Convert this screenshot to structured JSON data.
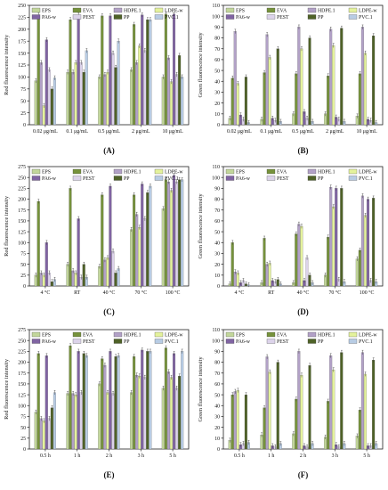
{
  "series_names": [
    "EPS",
    "EVA",
    "HDPE.1",
    "LDPE-w",
    "PA6-w",
    "PEST",
    "PP",
    "PVC.1"
  ],
  "series_colors": [
    "#c2d69b",
    "#76923c",
    "#b2a1c7",
    "#e4f29c",
    "#8064a2",
    "#dcd3ea",
    "#4f6228",
    "#b8cce4"
  ],
  "chart_data": [
    {
      "type": "bar",
      "panel_label": "(A)",
      "ylabel": "Red fluorescence intensity",
      "ylim": [
        0,
        250
      ],
      "yticks": [
        0,
        25,
        50,
        75,
        100,
        125,
        150,
        175,
        200,
        225,
        250
      ],
      "categories": [
        "0.02 μg/mL",
        "0.1 μg/mL",
        "0.5 μg/mL",
        "2 μg/mL",
        "10 μg/mL"
      ],
      "series": [
        {
          "name": "EPS",
          "values": [
            92,
            110,
            100,
            115,
            100
          ]
        },
        {
          "name": "EVA",
          "values": [
            230,
            220,
            228,
            210,
            232
          ]
        },
        {
          "name": "HDPE.1",
          "values": [
            130,
            110,
            105,
            130,
            140
          ]
        },
        {
          "name": "LDPE-w",
          "values": [
            40,
            130,
            110,
            165,
            90
          ]
        },
        {
          "name": "PA6-w",
          "values": [
            178,
            230,
            228,
            230,
            232
          ]
        },
        {
          "name": "PEST",
          "values": [
            115,
            130,
            150,
            155,
            105
          ]
        },
        {
          "name": "PP",
          "values": [
            75,
            110,
            120,
            220,
            145
          ]
        },
        {
          "name": "PVC.1",
          "values": [
            98,
            155,
            175,
            220,
            100
          ]
        }
      ]
    },
    {
      "type": "bar",
      "panel_label": "(B)",
      "ylabel": "Green fluorescence intensity",
      "ylim": [
        0,
        110
      ],
      "yticks": [
        0,
        10,
        20,
        30,
        40,
        50,
        60,
        70,
        80,
        90,
        100,
        110
      ],
      "categories": [
        "0.02 μg/mL",
        "0.1 μg/mL",
        "0.5 μg/mL",
        "2 μg/mL",
        "10 μg/mL"
      ],
      "series": [
        {
          "name": "EPS",
          "values": [
            6,
            5,
            10,
            10,
            8
          ]
        },
        {
          "name": "EVA",
          "values": [
            43,
            48,
            47,
            45,
            47
          ]
        },
        {
          "name": "HDPE.1",
          "values": [
            86,
            83,
            90,
            88,
            90
          ]
        },
        {
          "name": "LDPE-w",
          "values": [
            38,
            62,
            70,
            73,
            66
          ]
        },
        {
          "name": "PA6-w",
          "values": [
            9,
            6,
            12,
            7,
            5
          ]
        },
        {
          "name": "PEST",
          "values": [
            5,
            4,
            6,
            5,
            4
          ]
        },
        {
          "name": "PP",
          "values": [
            44,
            70,
            80,
            89,
            82
          ]
        },
        {
          "name": "PVC.1",
          "values": [
            2,
            3,
            3,
            3,
            2
          ]
        }
      ]
    },
    {
      "type": "bar",
      "panel_label": "(C)",
      "ylabel": "Red fluorescence intensity",
      "ylim": [
        0,
        275
      ],
      "yticks": [
        0,
        25,
        50,
        75,
        100,
        125,
        150,
        175,
        200,
        225,
        250,
        275
      ],
      "categories": [
        "4 °C",
        "RT",
        "40 °C",
        "70 °C",
        "100 °C"
      ],
      "series": [
        {
          "name": "EPS",
          "values": [
            25,
            50,
            45,
            130,
            178
          ]
        },
        {
          "name": "EVA",
          "values": [
            195,
            225,
            210,
            210,
            245
          ]
        },
        {
          "name": "HDPE.1",
          "values": [
            30,
            35,
            60,
            165,
            240
          ]
        },
        {
          "name": "LDPE-w",
          "values": [
            25,
            30,
            65,
            135,
            220
          ]
        },
        {
          "name": "PA6-w",
          "values": [
            100,
            155,
            230,
            235,
            255
          ]
        },
        {
          "name": "PEST",
          "values": [
            30,
            20,
            80,
            155,
            240
          ]
        },
        {
          "name": "PP",
          "values": [
            10,
            50,
            30,
            215,
            245
          ]
        },
        {
          "name": "PVC.1",
          "values": [
            15,
            20,
            40,
            230,
            245
          ]
        }
      ]
    },
    {
      "type": "bar",
      "panel_label": "(D)",
      "ylabel": "Green fluorescence intensity",
      "ylim": [
        0,
        110
      ],
      "yticks": [
        0,
        10,
        20,
        30,
        40,
        50,
        60,
        70,
        80,
        90,
        100,
        110
      ],
      "categories": [
        "4 °C",
        "RT",
        "40 °C",
        "70 °C",
        "100 °C"
      ],
      "series": [
        {
          "name": "EPS",
          "values": [
            2,
            3,
            3,
            10,
            25
          ]
        },
        {
          "name": "EVA",
          "values": [
            40,
            44,
            48,
            45,
            33
          ]
        },
        {
          "name": "HDPE.1",
          "values": [
            13,
            20,
            57,
            91,
            83
          ]
        },
        {
          "name": "LDPE-w",
          "values": [
            12,
            21,
            55,
            73,
            65
          ]
        },
        {
          "name": "PA6-w",
          "values": [
            3,
            5,
            5,
            90,
            80
          ]
        },
        {
          "name": "PEST",
          "values": [
            5,
            4,
            26,
            6,
            5
          ]
        },
        {
          "name": "PP",
          "values": [
            2,
            6,
            10,
            90,
            81
          ]
        },
        {
          "name": "PVC.1",
          "values": [
            1,
            2,
            3,
            4,
            4
          ]
        }
      ]
    },
    {
      "type": "bar",
      "panel_label": "(E)",
      "ylabel": "Red fluorescence intensity",
      "ylim": [
        0,
        275
      ],
      "yticks": [
        0,
        25,
        50,
        75,
        100,
        125,
        150,
        175,
        200,
        225,
        250,
        275
      ],
      "categories": [
        "0.5 h",
        "1 h",
        "2 h",
        "3 h",
        "5 h"
      ],
      "series": [
        {
          "name": "EPS",
          "values": [
            85,
            128,
            150,
            130,
            140
          ]
        },
        {
          "name": "EVA",
          "values": [
            220,
            238,
            208,
            213,
            233
          ]
        },
        {
          "name": "HDPE.1",
          "values": [
            70,
            128,
            193,
            170,
            178
          ]
        },
        {
          "name": "LDPE-w",
          "values": [
            65,
            125,
            130,
            168,
            165
          ]
        },
        {
          "name": "PA6-w",
          "values": [
            215,
            225,
            225,
            228,
            220
          ]
        },
        {
          "name": "PEST",
          "values": [
            70,
            130,
            128,
            165,
            140
          ]
        },
        {
          "name": "PP",
          "values": [
            95,
            220,
            213,
            225,
            168
          ]
        },
        {
          "name": "PVC.1",
          "values": [
            130,
            215,
            215,
            225,
            225
          ]
        }
      ]
    },
    {
      "type": "bar",
      "panel_label": "(F)",
      "ylabel": "Green fluorescence intensity",
      "ylim": [
        0,
        110
      ],
      "yticks": [
        0,
        10,
        20,
        30,
        40,
        50,
        60,
        70,
        80,
        90,
        100,
        110
      ],
      "categories": [
        "0.5 h",
        "1 h",
        "2 h",
        "3 h",
        "5 h"
      ],
      "series": [
        {
          "name": "EPS",
          "values": [
            8,
            13,
            14,
            11,
            12
          ]
        },
        {
          "name": "EVA",
          "values": [
            50,
            38,
            46,
            44,
            36
          ]
        },
        {
          "name": "HDPE.1",
          "values": [
            53,
            85,
            90,
            86,
            89
          ]
        },
        {
          "name": "LDPE-w",
          "values": [
            54,
            71,
            68,
            73,
            69
          ]
        },
        {
          "name": "PA6-w",
          "values": [
            4,
            3,
            3,
            4,
            3
          ]
        },
        {
          "name": "PEST",
          "values": [
            5,
            2,
            2,
            2,
            3
          ]
        },
        {
          "name": "PP",
          "values": [
            50,
            80,
            77,
            89,
            82
          ]
        },
        {
          "name": "PVC.1",
          "values": [
            6,
            5,
            5,
            5,
            5
          ]
        }
      ]
    }
  ]
}
